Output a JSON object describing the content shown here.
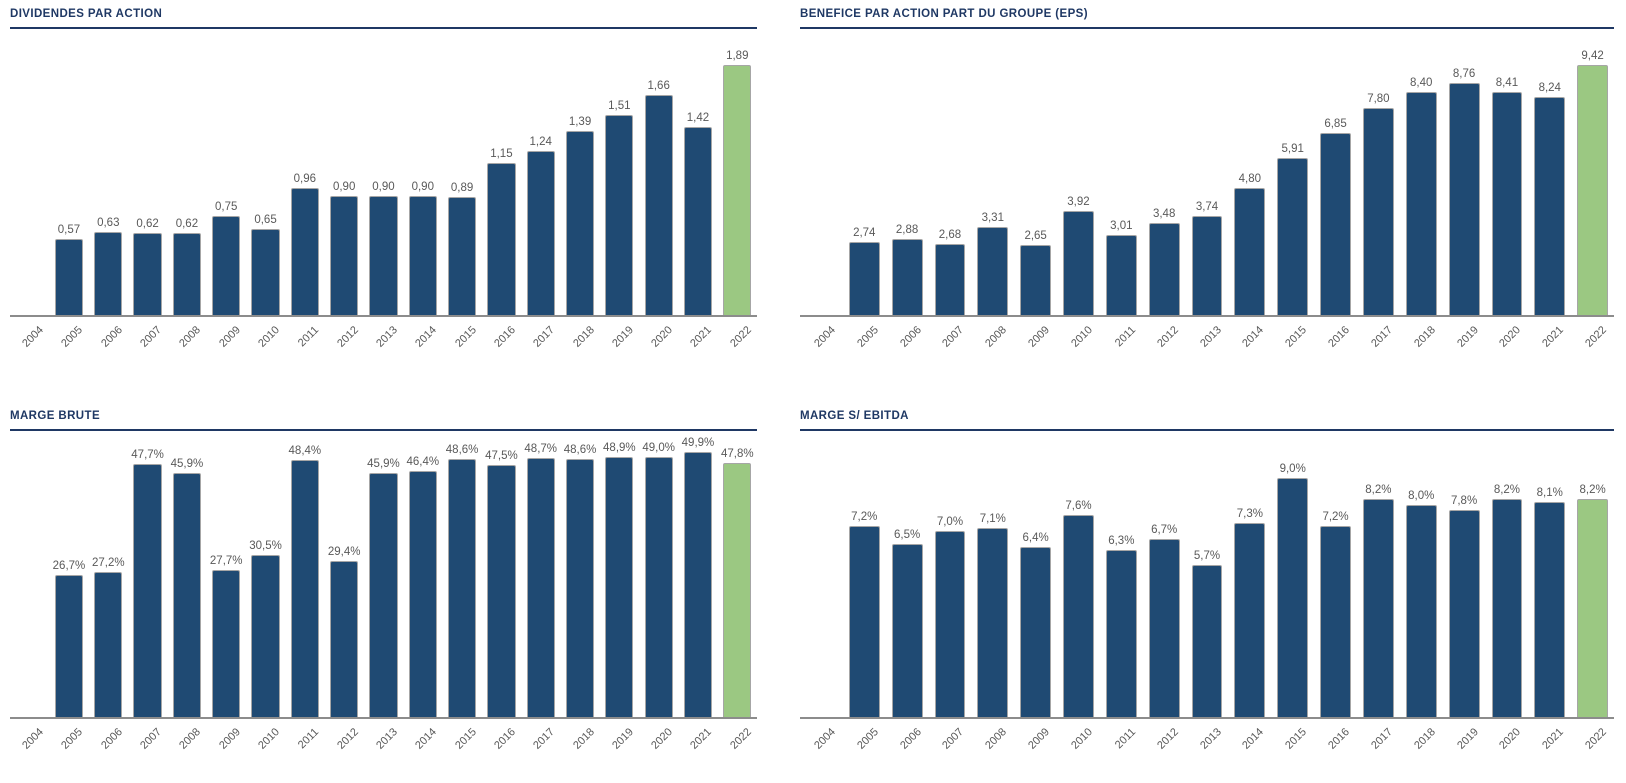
{
  "colors": {
    "bar_blue": "#1f4a73",
    "bar_green": "#9bc882",
    "bar_border": "#a6a6a6",
    "title_navy": "#1f3864",
    "label_gray": "#595959",
    "axis_gray": "#8c8c8c"
  },
  "chart_data": [
    {
      "type": "bar",
      "title": "DIVIDENDES PAR ACTION",
      "categories": [
        "2004",
        "2005",
        "2006",
        "2007",
        "2008",
        "2009",
        "2010",
        "2011",
        "2012",
        "2013",
        "2014",
        "2015",
        "2016",
        "2017",
        "2018",
        "2019",
        "2020",
        "2021",
        "2022"
      ],
      "values": [
        null,
        0.57,
        0.63,
        0.62,
        0.62,
        0.75,
        0.65,
        0.96,
        0.9,
        0.9,
        0.9,
        0.89,
        1.15,
        1.24,
        1.39,
        1.51,
        1.66,
        1.42,
        1.89
      ],
      "labels": [
        "",
        "0,57",
        "0,63",
        "0,62",
        "0,62",
        "0,75",
        "0,65",
        "0,96",
        "0,90",
        "0,90",
        "0,90",
        "0,89",
        "1,15",
        "1,24",
        "1,39",
        "1,51",
        "1,66",
        "1,42",
        "1,89"
      ],
      "xlabel": "",
      "ylabel": "",
      "ylim": [
        0,
        2
      ],
      "grid": false,
      "legend": "none",
      "highlight_last": true
    },
    {
      "type": "bar",
      "title": "BENEFICE PAR ACTION PART DU GROUPE (EPS)",
      "categories": [
        "2004",
        "2005",
        "2006",
        "2007",
        "2008",
        "2009",
        "2010",
        "2011",
        "2012",
        "2013",
        "2014",
        "2015",
        "2016",
        "2017",
        "2018",
        "2019",
        "2020",
        "2021",
        "2022"
      ],
      "values": [
        null,
        2.74,
        2.88,
        2.68,
        3.31,
        2.65,
        3.92,
        3.01,
        3.48,
        3.74,
        4.8,
        5.91,
        6.85,
        7.8,
        8.4,
        8.76,
        8.41,
        8.24,
        9.42
      ],
      "labels": [
        "",
        "2,74",
        "2,88",
        "2,68",
        "3,31",
        "2,65",
        "3,92",
        "3,01",
        "3,48",
        "3,74",
        "4,80",
        "5,91",
        "6,85",
        "7,80",
        "8,40",
        "8,76",
        "8,41",
        "8,24",
        "9,42"
      ],
      "xlabel": "",
      "ylabel": "",
      "ylim": [
        0,
        10
      ],
      "grid": false,
      "legend": "none",
      "highlight_last": true
    },
    {
      "type": "bar",
      "title": "MARGE BRUTE",
      "categories": [
        "2004",
        "2005",
        "2006",
        "2007",
        "2008",
        "2009",
        "2010",
        "2011",
        "2012",
        "2013",
        "2014",
        "2015",
        "2016",
        "2017",
        "2018",
        "2019",
        "2020",
        "2021",
        "2022"
      ],
      "values": [
        null,
        26.7,
        27.2,
        47.7,
        45.9,
        27.7,
        30.5,
        48.4,
        29.4,
        45.9,
        46.4,
        48.6,
        47.5,
        48.7,
        48.6,
        48.9,
        49.0,
        49.9,
        47.8
      ],
      "labels": [
        "",
        "26,7%",
        "27,2%",
        "47,7%",
        "45,9%",
        "27,7%",
        "30,5%",
        "48,4%",
        "29,4%",
        "45,9%",
        "46,4%",
        "48,6%",
        "47,5%",
        "48,7%",
        "48,6%",
        "48,9%",
        "49,0%",
        "49,9%",
        "47,8%"
      ],
      "xlabel": "",
      "ylabel": "",
      "ylim": [
        0,
        50
      ],
      "grid": false,
      "legend": "none",
      "highlight_last": true
    },
    {
      "type": "bar",
      "title": "MARGE S/ EBITDA",
      "categories": [
        "2004",
        "2005",
        "2006",
        "2007",
        "2008",
        "2009",
        "2010",
        "2011",
        "2012",
        "2013",
        "2014",
        "2015",
        "2016",
        "2017",
        "2018",
        "2019",
        "2020",
        "2021",
        "2022"
      ],
      "values": [
        null,
        7.2,
        6.5,
        7.0,
        7.1,
        6.4,
        7.6,
        6.3,
        6.7,
        5.7,
        7.3,
        9.0,
        7.2,
        8.2,
        8.0,
        7.8,
        8.2,
        8.1,
        8.2
      ],
      "labels": [
        "",
        "7,2%",
        "6,5%",
        "7,0%",
        "7,1%",
        "6,4%",
        "7,6%",
        "6,3%",
        "6,7%",
        "5,7%",
        "7,3%",
        "9,0%",
        "7,2%",
        "8,2%",
        "8,0%",
        "7,8%",
        "8,2%",
        "8,1%",
        "8,2%"
      ],
      "xlabel": "",
      "ylabel": "",
      "ylim": [
        0,
        10
      ],
      "grid": false,
      "legend": "none",
      "highlight_last": true
    }
  ]
}
